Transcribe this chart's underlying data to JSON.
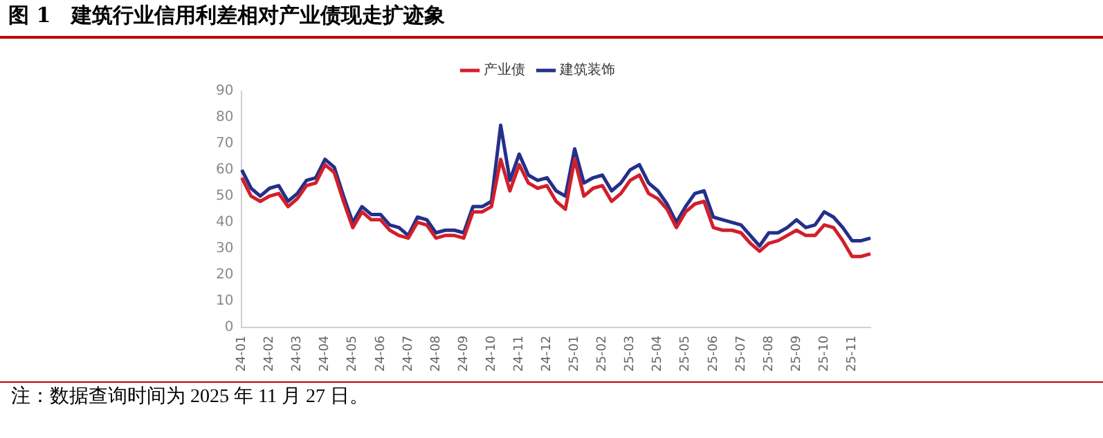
{
  "chart_data": {
    "type": "line",
    "title": "图 1　建筑行业信用利差相对产业债现走扩迹象",
    "categories": [
      "24-01",
      null,
      null,
      "24-02",
      null,
      null,
      "24-03",
      null,
      null,
      "24-04",
      null,
      null,
      "24-05",
      null,
      null,
      "24-06",
      null,
      null,
      "24-07",
      null,
      null,
      "24-08",
      null,
      null,
      "24-09",
      null,
      null,
      "24-10",
      null,
      null,
      "24-11",
      null,
      null,
      "24-12",
      null,
      null,
      "25-01",
      null,
      null,
      "25-02",
      null,
      null,
      "25-03",
      null,
      null,
      "25-04",
      null,
      null,
      "25-05",
      null,
      null,
      "25-06",
      null,
      null,
      "25-07",
      null,
      null,
      "25-08",
      null,
      null,
      "25-09",
      null,
      null,
      "25-10",
      null,
      null,
      "25-11",
      null,
      null
    ],
    "series": [
      {
        "name": "产业债",
        "color": "#d21f2b",
        "values": [
          57,
          50,
          48,
          50,
          51,
          46,
          49,
          54,
          55,
          62,
          59,
          48,
          38,
          44,
          41,
          41,
          37,
          35,
          34,
          40,
          39,
          34,
          35,
          35,
          34,
          44,
          44,
          46,
          64,
          52,
          62,
          55,
          53,
          54,
          48,
          45,
          64,
          50,
          53,
          54,
          48,
          51,
          56,
          58,
          51,
          49,
          45,
          38,
          44,
          47,
          48,
          38,
          37,
          37,
          36,
          32,
          29,
          32,
          33,
          35,
          37,
          35,
          35,
          39,
          38,
          33,
          27,
          27,
          28
        ]
      },
      {
        "name": "建筑装饰",
        "color": "#23308a",
        "values": [
          60,
          53,
          50,
          53,
          54,
          48,
          51,
          56,
          57,
          64,
          61,
          50,
          40,
          46,
          43,
          43,
          39,
          38,
          35,
          42,
          41,
          36,
          37,
          37,
          36,
          46,
          46,
          48,
          77,
          56,
          66,
          58,
          56,
          57,
          52,
          50,
          68,
          55,
          57,
          58,
          52,
          55,
          60,
          62,
          55,
          52,
          47,
          40,
          46,
          51,
          52,
          42,
          41,
          40,
          39,
          35,
          31,
          36,
          36,
          38,
          41,
          38,
          39,
          44,
          42,
          38,
          33,
          33,
          34
        ]
      }
    ],
    "ylim": [
      0,
      90
    ],
    "yticks": [
      0,
      10,
      20,
      30,
      40,
      50,
      60,
      70,
      80,
      90
    ],
    "grid": false,
    "legend": "top",
    "marker": "none",
    "line_style": "solid",
    "annotations": [
      "注：数据查询时间为 2025 年 11 月 27 日。"
    ]
  }
}
